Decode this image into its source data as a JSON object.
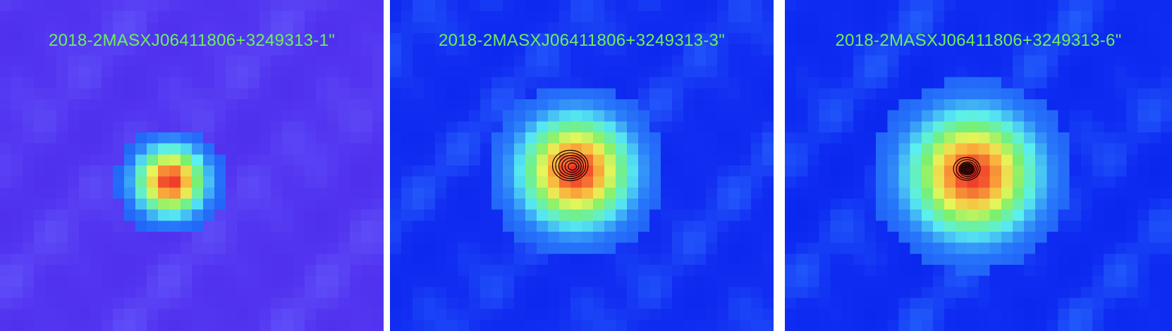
{
  "panels": [
    {
      "label": "2018-2MASXJ06411806+3249313-1\"",
      "image": "smoothed-map",
      "background_color": "#8a3cf0",
      "has_contours": false
    },
    {
      "label": "2018-2MASXJ06411806+3249313-3\"",
      "image": "smoothed-map",
      "background_color": "#1f2ff0",
      "has_contours": true
    },
    {
      "label": "2018-2MASXJ06411806+3249313-6\"",
      "image": "smoothed-map",
      "background_color": "#0a1ff2",
      "has_contours": true
    }
  ],
  "colors": {
    "label_text": "#6cf05a",
    "separator": "#ffffff",
    "contour": "#1a0000"
  }
}
